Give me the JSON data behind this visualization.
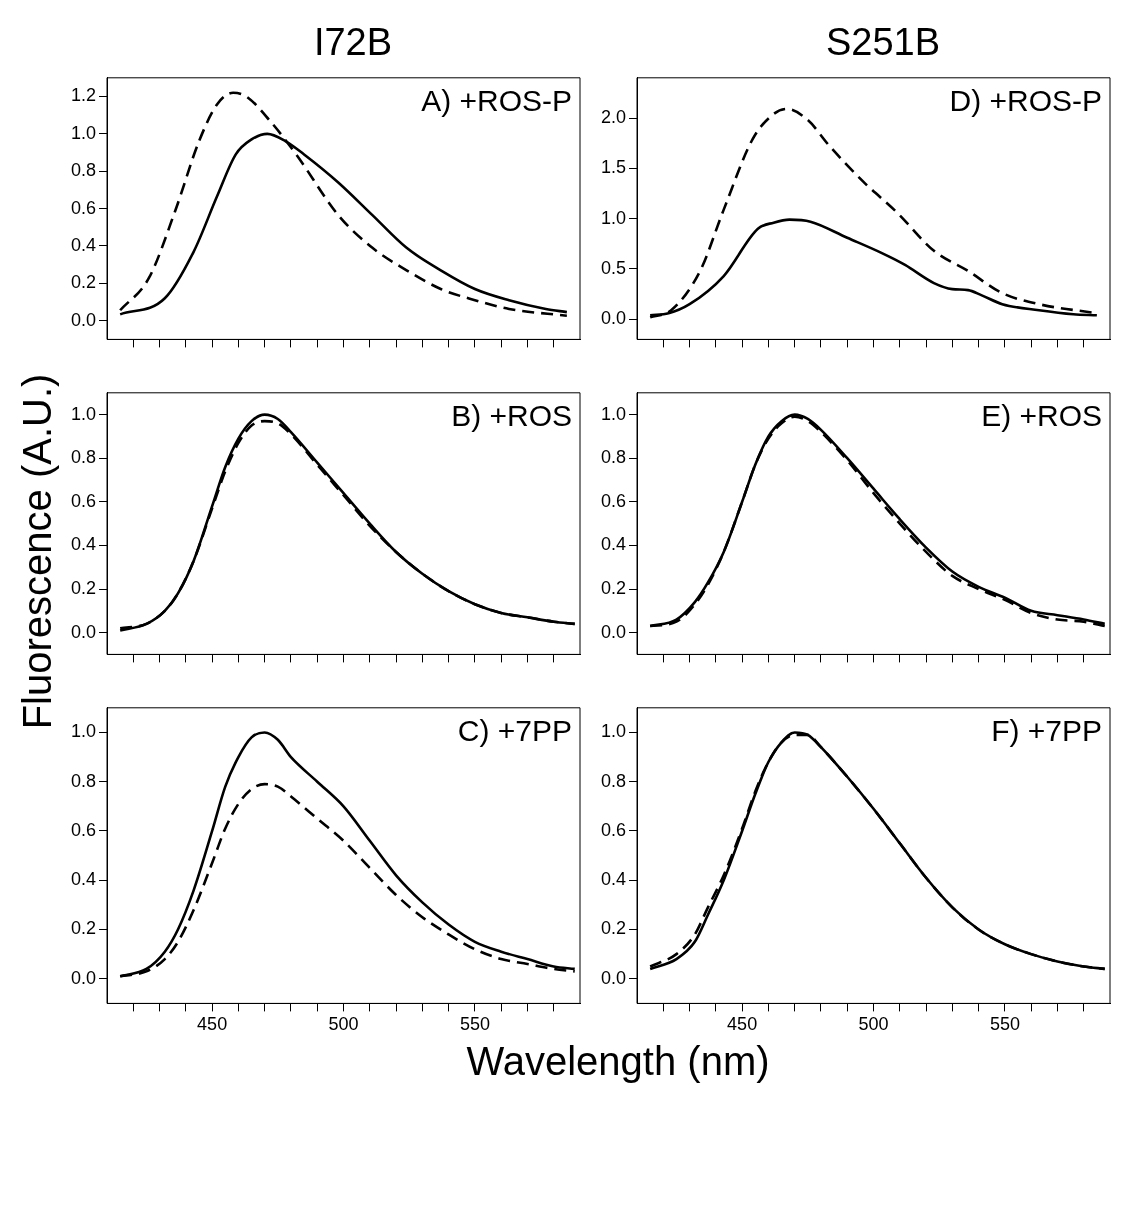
{
  "chart_data": [
    {
      "type": "line",
      "title": "I72B",
      "annotations": [
        "A) +ROS-P"
      ],
      "xlim": [
        410,
        590
      ],
      "ylim": [
        -0.1,
        1.3
      ],
      "tick_labels": "y",
      "grid": false,
      "legend": false,
      "marker": "none",
      "xticks": [
        {
          "value": 420,
          "label": null
        },
        {
          "value": 430,
          "label": null
        },
        {
          "value": 440,
          "label": null
        },
        450,
        {
          "value": 460,
          "label": null
        },
        {
          "value": 470,
          "label": null
        },
        {
          "value": 480,
          "label": null
        },
        {
          "value": 490,
          "label": null
        },
        500,
        {
          "value": 510,
          "label": null
        },
        {
          "value": 520,
          "label": null
        },
        {
          "value": 530,
          "label": null
        },
        {
          "value": 540,
          "label": null
        },
        550,
        {
          "value": 560,
          "label": null
        },
        {
          "value": 570,
          "label": null
        },
        {
          "value": 580,
          "label": null
        }
      ],
      "yticks": [
        {
          "value": 0,
          "label": "0.0"
        },
        {
          "value": 0.2,
          "label": "0.2"
        },
        {
          "value": 0.4,
          "label": "0.4"
        },
        {
          "value": 0.6,
          "label": "0.6"
        },
        {
          "value": 0.8,
          "label": "0.8"
        },
        {
          "value": 1,
          "label": "1.0"
        },
        {
          "value": 1.2,
          "label": "1.2"
        }
      ],
      "series": [
        {
          "color": "#000000",
          "line_style": "solid",
          "x": [
            415,
            432,
            443,
            452,
            459,
            465,
            471,
            478,
            485,
            498,
            511,
            524,
            537,
            550,
            563,
            577,
            585
          ],
          "values": [
            0.034,
            0.12,
            0.37,
            0.67,
            0.89,
            0.97,
            1.0,
            0.96,
            0.89,
            0.74,
            0.565,
            0.39,
            0.27,
            0.17,
            0.11,
            0.063,
            0.046
          ]
        },
        {
          "color": "#000000",
          "line_style": "dashed",
          "x": [
            415,
            426,
            436,
            445,
            452,
            458,
            463,
            472,
            482,
            498,
            511,
            524,
            537,
            550,
            563,
            585
          ],
          "values": [
            0.056,
            0.23,
            0.59,
            0.96,
            1.16,
            1.22,
            1.2,
            1.07,
            0.89,
            0.565,
            0.39,
            0.27,
            0.17,
            0.11,
            0.063,
            0.027
          ]
        }
      ]
    },
    {
      "type": "line",
      "title": "S251B",
      "annotations": [
        "D) +ROS-P"
      ],
      "xlim": [
        410,
        590
      ],
      "ylim": [
        -0.2,
        2.4
      ],
      "tick_labels": "y",
      "grid": false,
      "legend": false,
      "marker": "none",
      "xticks": [
        {
          "value": 420,
          "label": null
        },
        {
          "value": 430,
          "label": null
        },
        {
          "value": 440,
          "label": null
        },
        450,
        {
          "value": 460,
          "label": null
        },
        {
          "value": 470,
          "label": null
        },
        {
          "value": 480,
          "label": null
        },
        {
          "value": 490,
          "label": null
        },
        500,
        {
          "value": 510,
          "label": null
        },
        {
          "value": 520,
          "label": null
        },
        {
          "value": 530,
          "label": null
        },
        {
          "value": 540,
          "label": null
        },
        550,
        {
          "value": 560,
          "label": null
        },
        {
          "value": 570,
          "label": null
        },
        {
          "value": 580,
          "label": null
        }
      ],
      "yticks": [
        {
          "value": 0,
          "label": "0.0"
        },
        {
          "value": 0.5,
          "label": "0.5"
        },
        {
          "value": 1,
          "label": "1.0"
        },
        {
          "value": 1.5,
          "label": "1.5"
        },
        {
          "value": 2,
          "label": "2.0"
        }
      ],
      "series": [
        {
          "color": "#000000",
          "line_style": "solid",
          "x": [
            415,
            422,
            430,
            443,
            456,
            462,
            468,
            476,
            490,
            503,
            512,
            523,
            530,
            536,
            541,
            549,
            563,
            576,
            585
          ],
          "values": [
            0.04,
            0.06,
            0.15,
            0.43,
            0.9,
            0.96,
            0.99,
            0.97,
            0.81,
            0.66,
            0.54,
            0.36,
            0.3,
            0.29,
            0.24,
            0.15,
            0.09,
            0.05,
            0.04
          ]
        },
        {
          "color": "#000000",
          "line_style": "dashed",
          "x": [
            415,
            423,
            434,
            443,
            454,
            462,
            467,
            475,
            483,
            496,
            509,
            523,
            536,
            549,
            563,
            585
          ],
          "values": [
            0.02,
            0.09,
            0.48,
            1.09,
            1.79,
            2.04,
            2.09,
            1.98,
            1.73,
            1.37,
            1.06,
            0.68,
            0.48,
            0.26,
            0.15,
            0.06
          ]
        }
      ]
    },
    {
      "type": "line",
      "ylabel": "Fluorescence (A.U.)",
      "annotations": [
        "B) +ROS"
      ],
      "xlim": [
        410,
        590
      ],
      "ylim": [
        -0.1,
        1.1
      ],
      "tick_labels": "y",
      "grid": false,
      "legend": false,
      "marker": "none",
      "xticks": [
        {
          "value": 420,
          "label": null
        },
        {
          "value": 430,
          "label": null
        },
        {
          "value": 440,
          "label": null
        },
        450,
        {
          "value": 460,
          "label": null
        },
        {
          "value": 470,
          "label": null
        },
        {
          "value": 480,
          "label": null
        },
        {
          "value": 490,
          "label": null
        },
        500,
        {
          "value": 510,
          "label": null
        },
        {
          "value": 520,
          "label": null
        },
        {
          "value": 530,
          "label": null
        },
        {
          "value": 540,
          "label": null
        },
        550,
        {
          "value": 560,
          "label": null
        },
        {
          "value": 570,
          "label": null
        },
        {
          "value": 580,
          "label": null
        }
      ],
      "yticks": [
        {
          "value": 0,
          "label": "0.0"
        },
        {
          "value": 0.2,
          "label": "0.2"
        },
        {
          "value": 0.4,
          "label": "0.4"
        },
        {
          "value": 0.6,
          "label": "0.6"
        },
        {
          "value": 0.8,
          "label": "0.8"
        },
        {
          "value": 1,
          "label": "1.0"
        }
      ],
      "x": [
        415,
        425,
        432,
        437,
        443,
        450,
        455,
        460,
        465,
        470,
        475,
        480,
        490,
        500,
        510,
        520,
        530,
        540,
        550,
        560,
        570,
        580,
        588
      ],
      "series": [
        {
          "color": "#000000",
          "line_style": "solid",
          "values": [
            0.01,
            0.04,
            0.1,
            0.18,
            0.33,
            0.58,
            0.76,
            0.89,
            0.97,
            1.0,
            0.98,
            0.92,
            0.78,
            0.64,
            0.5,
            0.37,
            0.27,
            0.19,
            0.13,
            0.09,
            0.07,
            0.05,
            0.04
          ]
        },
        {
          "color": "#000000",
          "line_style": "dashed",
          "values": [
            0.02,
            0.04,
            0.1,
            0.18,
            0.33,
            0.57,
            0.74,
            0.87,
            0.95,
            0.97,
            0.96,
            0.91,
            0.77,
            0.63,
            0.49,
            0.37,
            0.27,
            0.19,
            0.13,
            0.09,
            0.07,
            0.05,
            0.04
          ]
        }
      ]
    },
    {
      "type": "line",
      "annotations": [
        "E) +ROS"
      ],
      "xlim": [
        410,
        590
      ],
      "ylim": [
        -0.1,
        1.1
      ],
      "tick_labels": "y",
      "grid": false,
      "legend": false,
      "marker": "none",
      "xticks": [
        {
          "value": 420,
          "label": null
        },
        {
          "value": 430,
          "label": null
        },
        {
          "value": 440,
          "label": null
        },
        450,
        {
          "value": 460,
          "label": null
        },
        {
          "value": 470,
          "label": null
        },
        {
          "value": 480,
          "label": null
        },
        {
          "value": 490,
          "label": null
        },
        500,
        {
          "value": 510,
          "label": null
        },
        {
          "value": 520,
          "label": null
        },
        {
          "value": 530,
          "label": null
        },
        {
          "value": 540,
          "label": null
        },
        550,
        {
          "value": 560,
          "label": null
        },
        {
          "value": 570,
          "label": null
        },
        {
          "value": 580,
          "label": null
        }
      ],
      "yticks": [
        {
          "value": 0,
          "label": "0.0"
        },
        {
          "value": 0.2,
          "label": "0.2"
        },
        {
          "value": 0.4,
          "label": "0.4"
        },
        {
          "value": 0.6,
          "label": "0.6"
        },
        {
          "value": 0.8,
          "label": "0.8"
        },
        {
          "value": 1,
          "label": "1.0"
        }
      ],
      "x": [
        415,
        425,
        432,
        437,
        443,
        450,
        455,
        460,
        465,
        470,
        475,
        480,
        490,
        500,
        510,
        520,
        530,
        540,
        550,
        560,
        570,
        580,
        588
      ],
      "series": [
        {
          "color": "#000000",
          "line_style": "solid",
          "values": [
            0.03,
            0.06,
            0.14,
            0.23,
            0.37,
            0.6,
            0.77,
            0.9,
            0.97,
            1.0,
            0.98,
            0.93,
            0.8,
            0.66,
            0.52,
            0.39,
            0.28,
            0.21,
            0.16,
            0.1,
            0.08,
            0.06,
            0.04
          ]
        },
        {
          "color": "#000000",
          "line_style": "dashed",
          "values": [
            0.03,
            0.05,
            0.13,
            0.22,
            0.37,
            0.6,
            0.77,
            0.89,
            0.96,
            0.99,
            0.97,
            0.92,
            0.79,
            0.64,
            0.5,
            0.37,
            0.26,
            0.2,
            0.15,
            0.09,
            0.06,
            0.05,
            0.03
          ]
        }
      ]
    },
    {
      "type": "line",
      "xlabel": "Wavelength (nm)",
      "annotations": [
        "C) +7PP"
      ],
      "xlim": [
        410,
        590
      ],
      "ylim": [
        -0.1,
        1.1
      ],
      "grid": false,
      "legend": false,
      "marker": "none",
      "xticks": [
        {
          "value": 420,
          "label": null
        },
        {
          "value": 430,
          "label": null
        },
        {
          "value": 440,
          "label": null
        },
        450,
        {
          "value": 460,
          "label": null
        },
        {
          "value": 470,
          "label": null
        },
        {
          "value": 480,
          "label": null
        },
        {
          "value": 490,
          "label": null
        },
        500,
        {
          "value": 510,
          "label": null
        },
        {
          "value": 520,
          "label": null
        },
        {
          "value": 530,
          "label": null
        },
        {
          "value": 540,
          "label": null
        },
        550,
        {
          "value": 560,
          "label": null
        },
        {
          "value": 570,
          "label": null
        },
        {
          "value": 580,
          "label": null
        }
      ],
      "yticks": [
        {
          "value": 0,
          "label": "0.0"
        },
        {
          "value": 0.2,
          "label": "0.2"
        },
        {
          "value": 0.4,
          "label": "0.4"
        },
        {
          "value": 0.6,
          "label": "0.6"
        },
        {
          "value": 0.8,
          "label": "0.8"
        },
        {
          "value": 1,
          "label": "1.0"
        }
      ],
      "x": [
        415,
        425,
        432,
        437,
        443,
        450,
        455,
        460,
        465,
        470,
        475,
        480,
        490,
        500,
        510,
        520,
        530,
        540,
        550,
        560,
        570,
        580,
        588
      ],
      "series": [
        {
          "color": "#000000",
          "line_style": "solid",
          "values": [
            0.01,
            0.04,
            0.11,
            0.2,
            0.36,
            0.6,
            0.78,
            0.9,
            0.98,
            1.0,
            0.97,
            0.9,
            0.8,
            0.7,
            0.56,
            0.42,
            0.31,
            0.22,
            0.15,
            0.11,
            0.08,
            0.05,
            0.04
          ]
        },
        {
          "color": "#000000",
          "line_style": "dashed",
          "values": [
            0.01,
            0.03,
            0.08,
            0.15,
            0.28,
            0.47,
            0.61,
            0.71,
            0.77,
            0.79,
            0.78,
            0.74,
            0.65,
            0.56,
            0.45,
            0.34,
            0.25,
            0.18,
            0.12,
            0.08,
            0.06,
            0.04,
            0.03
          ]
        }
      ]
    },
    {
      "type": "line",
      "annotations": [
        "F) +7PP"
      ],
      "xlim": [
        410,
        590
      ],
      "ylim": [
        -0.1,
        1.1
      ],
      "grid": false,
      "legend": false,
      "marker": "none",
      "xticks": [
        {
          "value": 420,
          "label": null
        },
        {
          "value": 430,
          "label": null
        },
        {
          "value": 440,
          "label": null
        },
        450,
        {
          "value": 460,
          "label": null
        },
        {
          "value": 470,
          "label": null
        },
        {
          "value": 480,
          "label": null
        },
        {
          "value": 490,
          "label": null
        },
        500,
        {
          "value": 510,
          "label": null
        },
        {
          "value": 520,
          "label": null
        },
        {
          "value": 530,
          "label": null
        },
        {
          "value": 540,
          "label": null
        },
        550,
        {
          "value": 560,
          "label": null
        },
        {
          "value": 570,
          "label": null
        },
        {
          "value": 580,
          "label": null
        }
      ],
      "yticks": [
        {
          "value": 0,
          "label": "0.0"
        },
        {
          "value": 0.2,
          "label": "0.2"
        },
        {
          "value": 0.4,
          "label": "0.4"
        },
        {
          "value": 0.6,
          "label": "0.6"
        },
        {
          "value": 0.8,
          "label": "0.8"
        },
        {
          "value": 1,
          "label": "1.0"
        }
      ],
      "x": [
        415,
        425,
        432,
        437,
        443,
        450,
        455,
        460,
        465,
        470,
        475,
        480,
        490,
        500,
        510,
        520,
        530,
        540,
        550,
        560,
        570,
        580,
        588
      ],
      "series": [
        {
          "color": "#000000",
          "line_style": "solid",
          "values": [
            0.04,
            0.08,
            0.15,
            0.26,
            0.4,
            0.6,
            0.75,
            0.88,
            0.96,
            1.0,
            0.99,
            0.94,
            0.82,
            0.69,
            0.55,
            0.41,
            0.29,
            0.2,
            0.14,
            0.1,
            0.07,
            0.05,
            0.04
          ]
        },
        {
          "color": "#000000",
          "line_style": "dashed",
          "values": [
            0.05,
            0.1,
            0.18,
            0.29,
            0.42,
            0.61,
            0.76,
            0.88,
            0.96,
            0.99,
            0.99,
            0.94,
            0.82,
            0.69,
            0.55,
            0.41,
            0.29,
            0.2,
            0.14,
            0.1,
            0.07,
            0.05,
            0.04
          ]
        }
      ]
    }
  ]
}
